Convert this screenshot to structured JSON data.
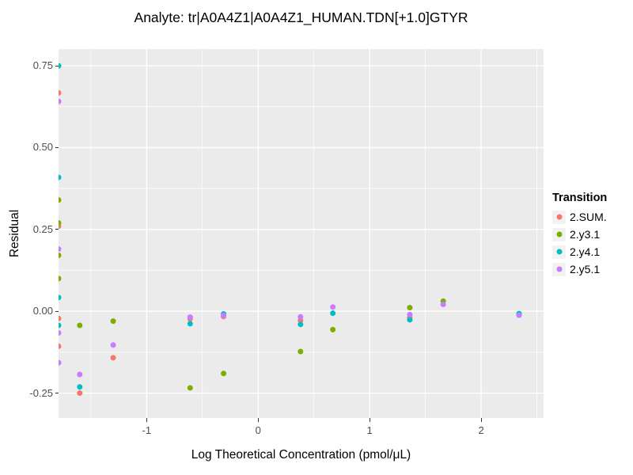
{
  "title": "Analyte: tr|A0A4Z1|A0A4Z1_HUMAN.TDN[+1.0]GTYR",
  "chart_data": {
    "type": "scatter",
    "title": "Analyte: tr|A0A4Z1|A0A4Z1_HUMAN.TDN[+1.0]GTYR",
    "xlabel": "Log Theoretical Concentration (pmol/μL)",
    "ylabel": "Residual",
    "xlim": [
      -1.79,
      2.56
    ],
    "ylim": [
      -0.326,
      0.801
    ],
    "xticks": [
      -1,
      0,
      1,
      2
    ],
    "xtick_labels": [
      "-1",
      "0",
      "1",
      "2"
    ],
    "yticks": [
      -0.25,
      0,
      0.25,
      0.5,
      0.75
    ],
    "ytick_labels": [
      "-0.25",
      "0.00",
      "0.25",
      "0.50",
      "0.75"
    ],
    "x_minor_step": 1,
    "y_minor_step": 0.25,
    "grid": "major+minor",
    "panel_background": "#EBEBEB",
    "gridline_color": "#FFFFFF",
    "point_radius": 3.5,
    "legend": {
      "title": "Transition",
      "position": "right"
    },
    "edge_note": "points at x = -1.79 sit on the panel's left edge and render half-clipped",
    "series": [
      {
        "name": "2.SUM.",
        "color": "#F8766D",
        "points": [
          [
            -1.79,
            0.667
          ],
          [
            -1.79,
            0.26
          ],
          [
            -1.79,
            -0.022
          ],
          [
            -1.79,
            -0.107
          ],
          [
            -1.6,
            -0.25
          ],
          [
            -1.3,
            -0.142
          ],
          [
            -0.61,
            -0.023
          ],
          [
            -0.31,
            -0.016
          ],
          [
            0.38,
            -0.028
          ],
          [
            1.36,
            -0.019
          ]
        ]
      },
      {
        "name": "2.y3.1",
        "color": "#7CAE00",
        "points": [
          [
            -1.79,
            0.34
          ],
          [
            -1.79,
            0.27
          ],
          [
            -1.79,
            0.171
          ],
          [
            -1.79,
            0.1
          ],
          [
            -1.6,
            -0.043
          ],
          [
            -1.3,
            -0.03
          ],
          [
            -0.61,
            -0.234
          ],
          [
            -0.31,
            -0.19
          ],
          [
            0.38,
            -0.123
          ],
          [
            0.67,
            -0.056
          ],
          [
            1.36,
            0.011
          ],
          [
            1.66,
            0.031
          ]
        ]
      },
      {
        "name": "2.y4.1",
        "color": "#00BFC4",
        "points": [
          [
            -1.79,
            0.75
          ],
          [
            -1.79,
            0.409
          ],
          [
            -1.79,
            0.042
          ],
          [
            -1.79,
            -0.043
          ],
          [
            -1.6,
            -0.231
          ],
          [
            -0.61,
            -0.038
          ],
          [
            -0.31,
            -0.008
          ],
          [
            0.38,
            -0.04
          ],
          [
            0.67,
            -0.006
          ],
          [
            1.36,
            -0.026
          ],
          [
            2.34,
            -0.007
          ]
        ]
      },
      {
        "name": "2.y5.1",
        "color": "#C77CFF",
        "points": [
          [
            -1.79,
            0.641
          ],
          [
            -1.79,
            0.19
          ],
          [
            -1.79,
            -0.066
          ],
          [
            -1.79,
            -0.157
          ],
          [
            -1.6,
            -0.193
          ],
          [
            -1.3,
            -0.103
          ],
          [
            -0.61,
            -0.018
          ],
          [
            -0.31,
            -0.013
          ],
          [
            0.38,
            -0.017
          ],
          [
            0.67,
            0.013
          ],
          [
            1.36,
            -0.01
          ],
          [
            1.66,
            0.021
          ],
          [
            2.34,
            -0.012
          ]
        ]
      }
    ]
  }
}
